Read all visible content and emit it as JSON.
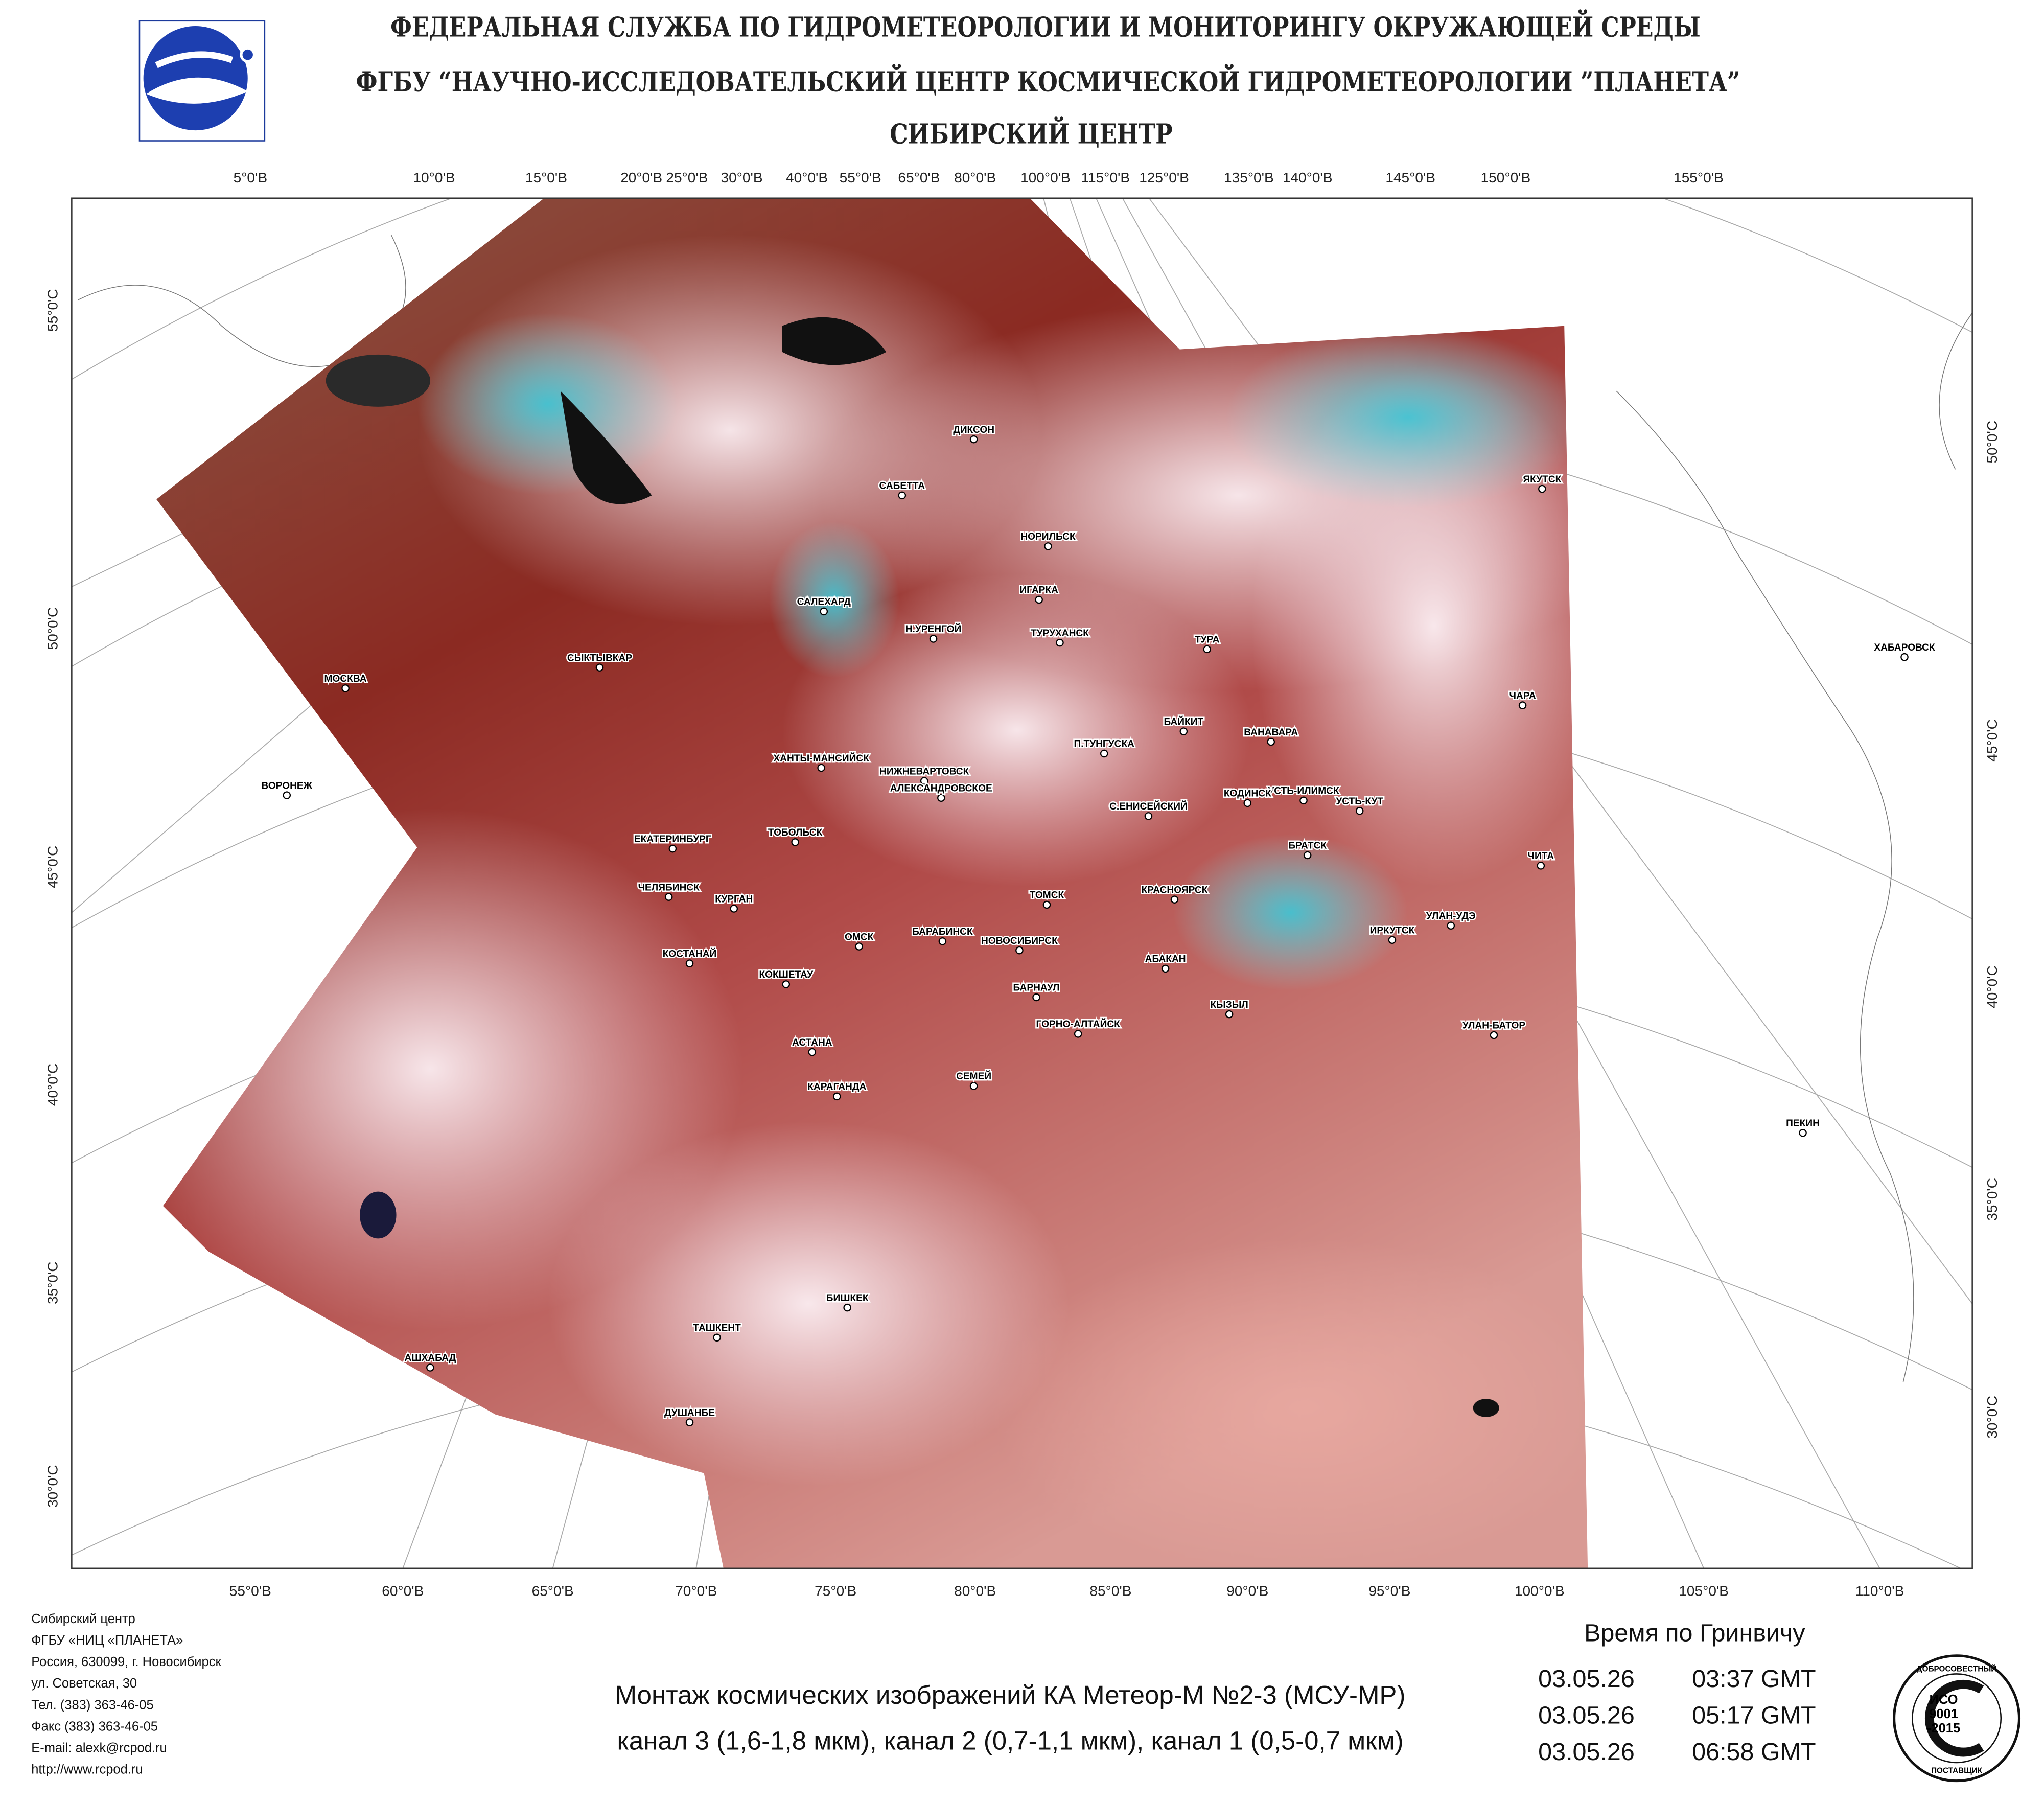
{
  "header": {
    "lines": [
      "ФЕДЕРАЛЬНАЯ СЛУЖБА ПО ГИДРОМЕТЕОРОЛОГИИ И МОНИТОРИНГУ ОКРУЖАЮЩЕЙ СРЕДЫ",
      "ФГБУ “НАУЧНО-ИССЛЕДОВАТЕЛЬСКИЙ ЦЕНТР КОСМИЧЕСКОЙ ГИДРОМЕТЕОРОЛОГИИ ”ПЛАНЕТА”",
      "СИБИРСКИЙ  ЦЕНТР"
    ]
  },
  "graticule": {
    "top": [
      "5°0'В",
      "10°0'В",
      "15°0'В",
      "20°0'В",
      "25°0'В",
      "30°0'В",
      "40°0'В",
      "55°0'В",
      "65°0'В",
      "80°0'В",
      "100°0'В",
      "115°0'В",
      "125°0'В",
      "135°0'В",
      "140°0'В",
      "145°0'В",
      "150°0'В",
      "155°0'В"
    ],
    "bottom": [
      "55°0'В",
      "60°0'В",
      "65°0'В",
      "70°0'В",
      "75°0'В",
      "80°0'В",
      "85°0'В",
      "90°0'В",
      "95°0'В",
      "100°0'В",
      "105°0'В",
      "110°0'В"
    ],
    "left": [
      "55°0'С",
      "50°0'С",
      "45°0'С",
      "40°0'С",
      "35°0'С",
      "30°0'С"
    ],
    "right": [
      "50°0'С",
      "45°0'С",
      "40°0'С",
      "35°0'С",
      "30°0'С"
    ]
  },
  "cities": [
    "ДИКСОН",
    "САБЕТТА",
    "НОРИЛЬСК",
    "ЯКУТСК",
    "ИГАРКА",
    "САЛЕХАРД",
    "Н.УРЕНГОЙ",
    "ТУРУХАНСК",
    "ТУРА",
    "ХАБАРОВСК",
    "СЫКТЫВКАР",
    "МОСКВА",
    "ЧАРА",
    "БАЙКИТ",
    "ВАНАВАРА",
    "П.ТУНГУСКА",
    "ХАНТЫ-МАНСИЙСК",
    "НИЖНЕВАРТОВСК",
    "ВОРОНЕЖ",
    "УСТЬ-ИЛИМСК",
    "С.ЕНИСЕЙСКИЙ",
    "АЛЕКСАНДРОВСКОЕ",
    "КОДИНСК",
    "УСТЬ-КУТ",
    "ТОБОЛЬСК",
    "ЕКАТЕРИНБУРГ",
    "БРАТСК",
    "ЧИТА",
    "ЧЕЛЯБИНСК",
    "КРАСНОЯРСК",
    "ТОМСК",
    "КУРГАН",
    "ОМСК",
    "ИРКУТСК",
    "УЛАН-УДЭ",
    "НОВОСИБИРСК",
    "БАРАБИНСК",
    "КОСТАНАЙ",
    "КОКШЕТАУ",
    "АБАКАН",
    "БАРНАУЛ",
    "КЫЗЫЛ",
    "ГОРНО-АЛТАЙСК",
    "УЛАН-БАТОР",
    "АСТАНА",
    "СЕМЕЙ",
    "КАРАГАНДА",
    "ПЕКИН",
    "БИШКЕК",
    "ТАШКЕНТ",
    "АШХАБАД",
    "ДУШАНБЕ"
  ],
  "footer": {
    "address": [
      "Сибирский центр",
      "ФГБУ «НИЦ «ПЛАНЕТА»",
      "Россия, 630099, г. Новосибирск",
      "ул. Советская, 30",
      "Тел. (383) 363-46-05",
      "Факс (383) 363-46-05",
      "E-mail: alexk@rcpod.ru",
      "http://www.rcpod.ru"
    ],
    "caption": [
      "Монтаж космических изображений КА Метеор-М №2-3 (МСУ-МР)",
      "канал 3 (1,6-1,8 мкм), канал 2 (0,7-1,1 мкм), канал 1 (0,5-0,7 мкм)"
    ],
    "time_title": "Время по Гринвичу",
    "times": [
      [
        "03.05.26",
        "03:37 GMT"
      ],
      [
        "03.05.26",
        "05:17 GMT"
      ],
      [
        "03.05.26",
        "06:58 GMT"
      ]
    ]
  },
  "logo_iso": {
    "top": "ДОБРОСОВЕСТНЫЙ",
    "lines": [
      "ИСО",
      "9001",
      "-2015"
    ],
    "bottom": "ПОСТАВЩИК"
  }
}
